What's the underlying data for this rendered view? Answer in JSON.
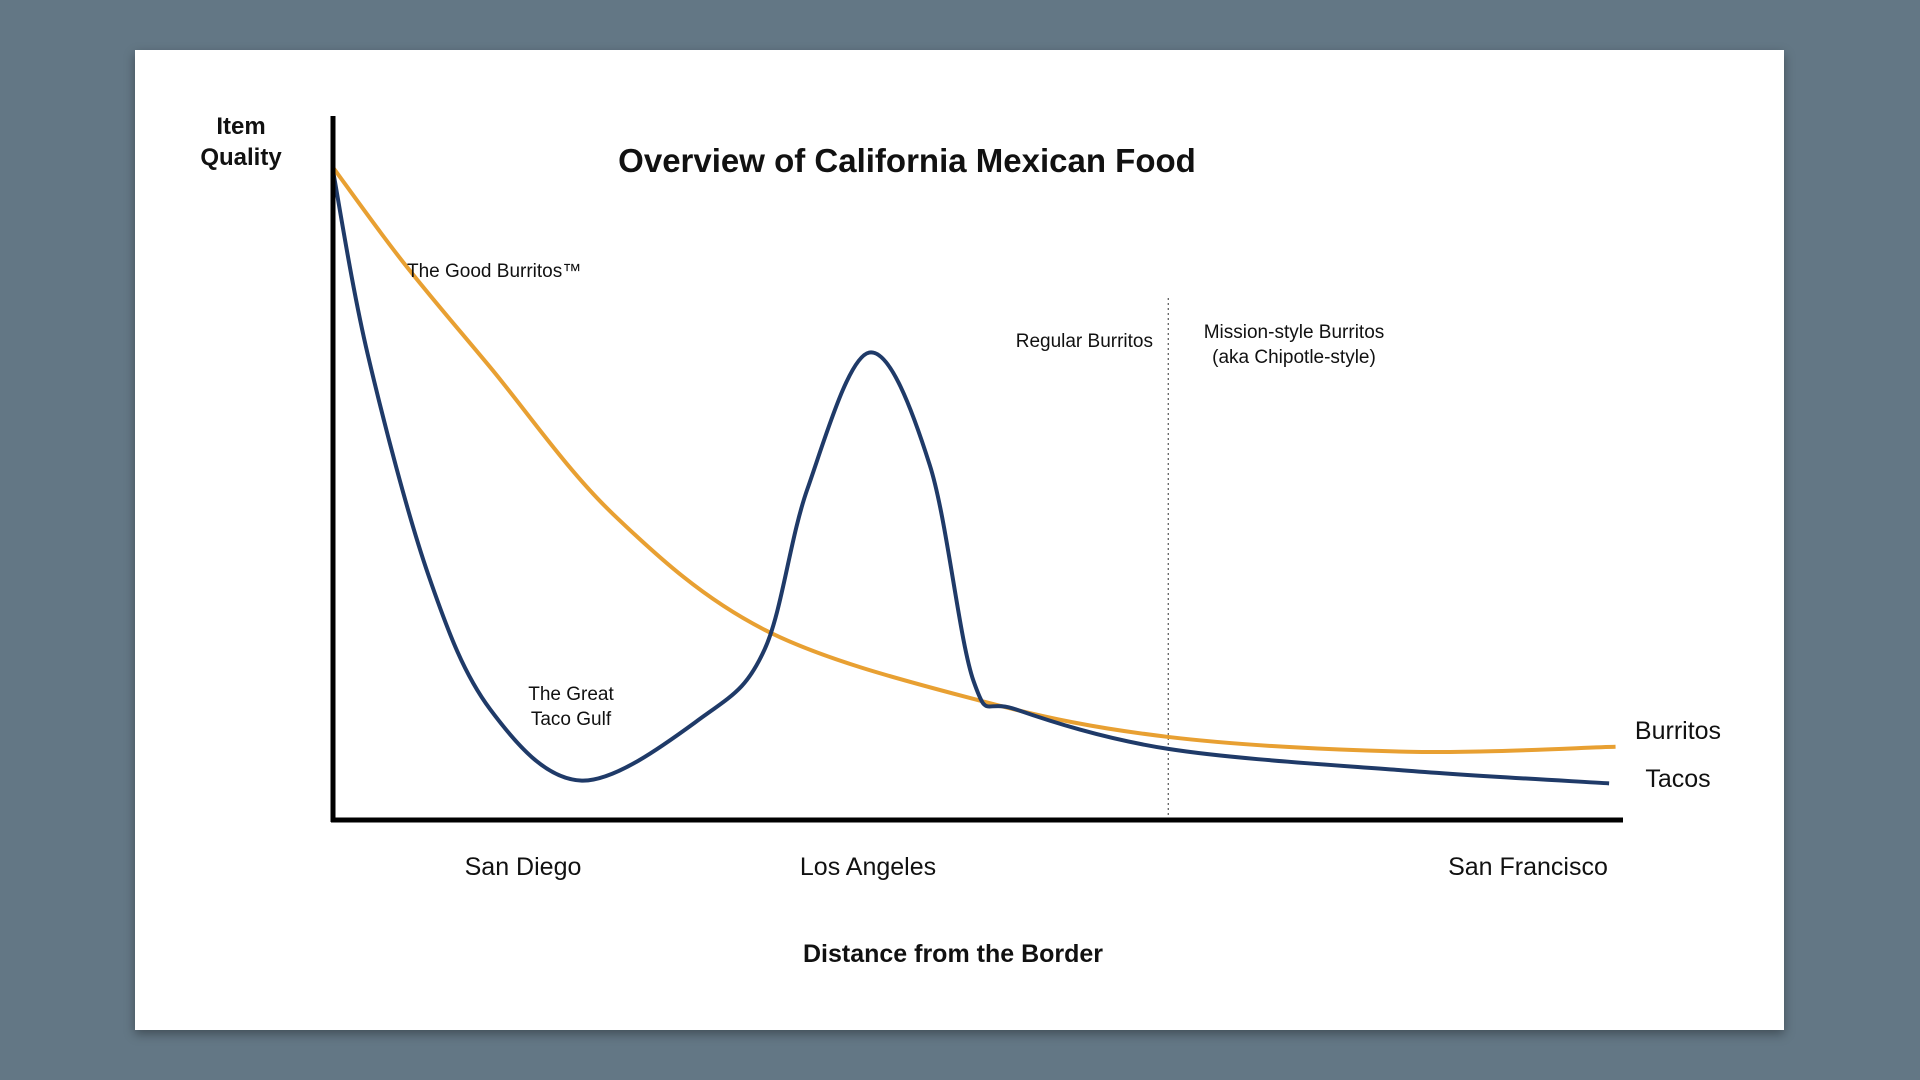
{
  "chart_data": {
    "type": "line",
    "title": "Overview of California Mexican Food",
    "xlabel": "Distance from the Border",
    "ylabel": "Item Quality",
    "ylabel_lines": [
      "Item",
      "Quality"
    ],
    "xlim": [
      0,
      100
    ],
    "ylim": [
      0,
      100
    ],
    "grid": false,
    "x_tick_labels": [
      {
        "label": "San Diego",
        "x": 14.8
      },
      {
        "label": "Los Angeles",
        "x": 41.5
      },
      {
        "label": "San Francisco",
        "x": 92.3
      }
    ],
    "divider": {
      "x": 64.8,
      "style": "dotted"
    },
    "series": [
      {
        "name": "Burritos",
        "color": "#E8A032",
        "x": [
          0,
          5.5,
          12.2,
          21.7,
          33.5,
          50.1,
          64.8,
          83.4,
          99.5
        ],
        "y": [
          92.7,
          79.1,
          64.3,
          43.5,
          27.0,
          17.0,
          11.8,
          9.7,
          10.4
        ]
      },
      {
        "name": "Tacos",
        "color": "#1F3A68",
        "x": [
          0,
          2.7,
          7.4,
          12.2,
          19.3,
          28.8,
          33.5,
          36.8,
          41.6,
          46.3,
          49.7,
          53.0,
          64.8,
          83.4,
          99.0
        ],
        "y": [
          92.2,
          66.1,
          34.8,
          15.7,
          5.6,
          14.8,
          24.3,
          47.0,
          66.4,
          50.4,
          19.7,
          15.7,
          10.1,
          7.0,
          5.2
        ]
      }
    ],
    "annotations": [
      {
        "text": "The Good Burritos™"
      },
      {
        "text": "The Great",
        "text2": "Taco Gulf"
      },
      {
        "text": "Regular Burritos"
      },
      {
        "text": "Mission-style Burritos",
        "text2": "(aka Chipotle-style)"
      }
    ]
  }
}
